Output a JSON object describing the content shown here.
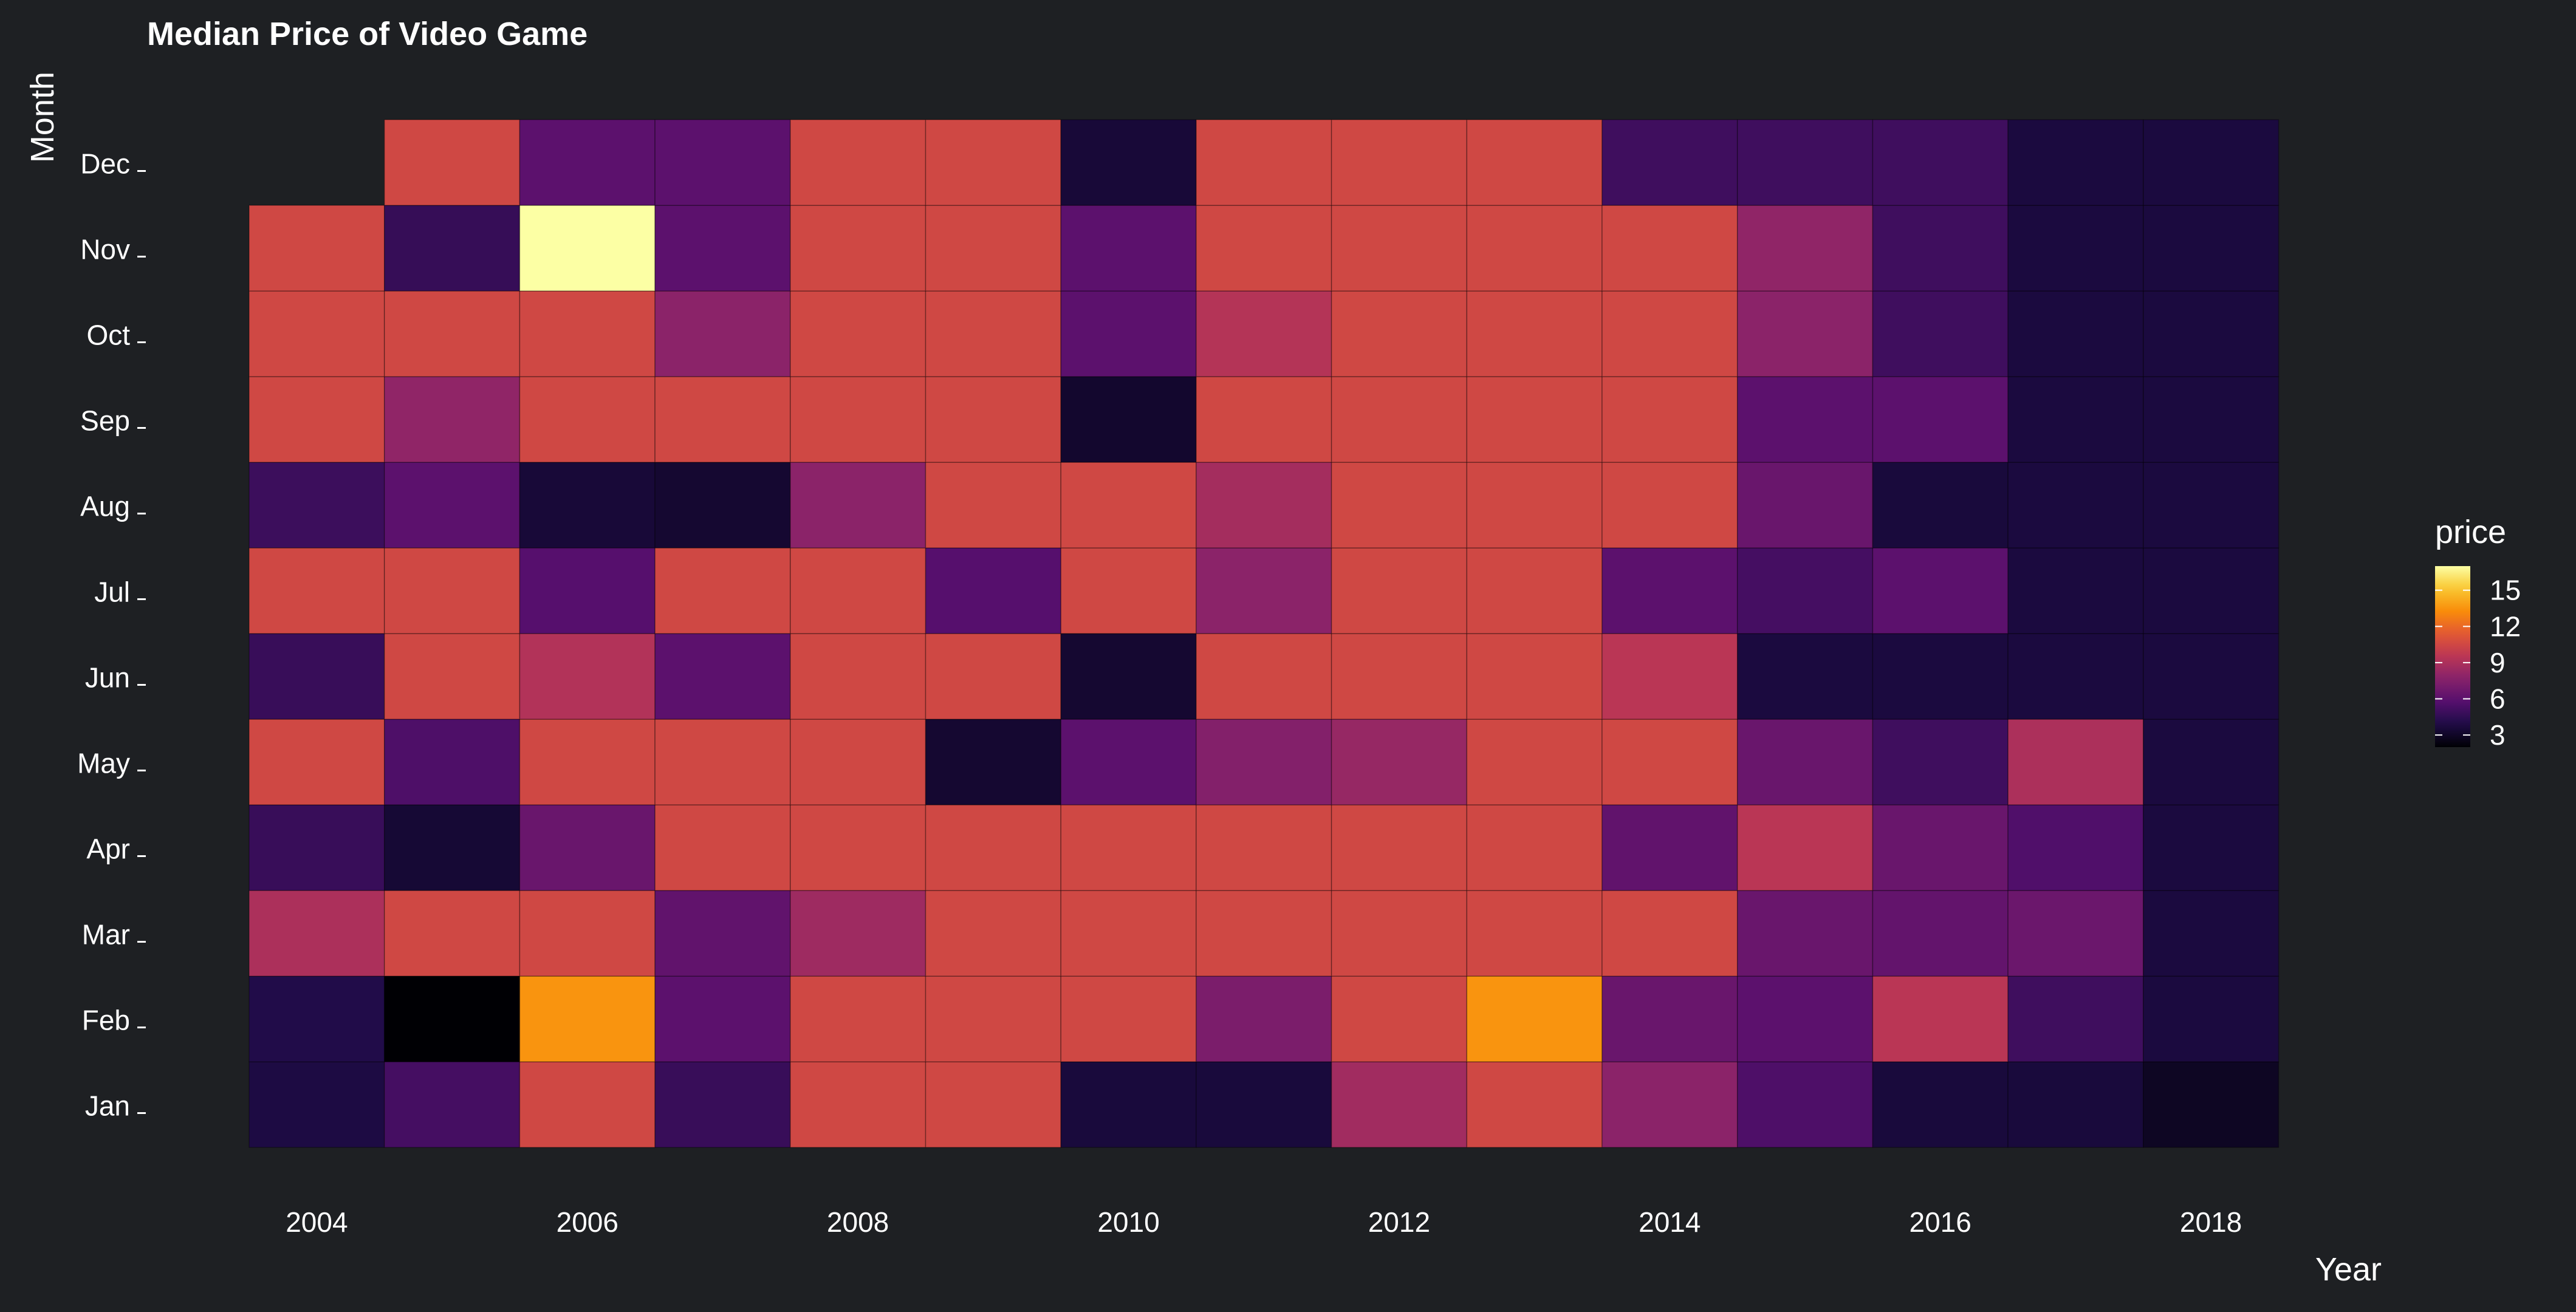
{
  "chart_data": {
    "type": "heatmap",
    "title": "Median Price of Video Game",
    "xlabel": "Year",
    "ylabel": "Month",
    "x_ticks": [
      "2004",
      "2006",
      "2008",
      "2010",
      "2012",
      "2014",
      "2016",
      "2018"
    ],
    "years": [
      2004,
      2005,
      2006,
      2007,
      2008,
      2009,
      2010,
      2011,
      2012,
      2013,
      2014,
      2015,
      2016,
      2017,
      2018
    ],
    "months": [
      "Jan",
      "Feb",
      "Mar",
      "Apr",
      "May",
      "Jun",
      "Jul",
      "Aug",
      "Sep",
      "Oct",
      "Nov",
      "Dec"
    ],
    "colorscale": "inferno",
    "color_range": [
      2,
      17
    ],
    "legend": {
      "title": "price",
      "ticks": [
        3,
        6,
        9,
        12,
        15
      ],
      "tick_labels": [
        "3",
        "6",
        "9",
        "12",
        "15"
      ],
      "position": "right"
    },
    "values": [
      [
        3.8,
        5.2,
        10.5,
        4.8,
        10.5,
        10.5,
        3.6,
        3.6,
        8.6,
        10.5,
        7.8,
        5.5,
        3.6,
        3.6,
        2.9
      ],
      [
        4.0,
        2.0,
        13.5,
        6.0,
        10.5,
        10.5,
        10.5,
        7.2,
        10.5,
        13.5,
        6.5,
        6.0,
        9.5,
        5.0,
        3.7
      ],
      [
        9.0,
        10.5,
        10.5,
        6.2,
        8.5,
        10.5,
        10.5,
        10.5,
        10.5,
        10.5,
        10.5,
        6.5,
        6.3,
        6.6,
        3.7
      ],
      [
        4.8,
        3.4,
        6.5,
        10.5,
        10.5,
        10.5,
        10.5,
        10.5,
        10.5,
        10.5,
        6.2,
        9.5,
        6.5,
        5.6,
        3.7
      ],
      [
        10.5,
        5.5,
        10.5,
        10.5,
        10.5,
        3.3,
        6.0,
        7.5,
        8.2,
        10.5,
        10.5,
        6.5,
        5.0,
        9.0,
        3.7
      ],
      [
        4.8,
        10.5,
        9.2,
        6.0,
        10.5,
        10.5,
        3.3,
        10.5,
        10.5,
        10.5,
        9.5,
        3.7,
        3.7,
        3.7,
        3.7
      ],
      [
        10.5,
        10.5,
        5.8,
        10.5,
        10.5,
        5.8,
        10.5,
        7.8,
        10.5,
        10.5,
        6.0,
        5.2,
        6.0,
        3.7,
        3.7
      ],
      [
        4.9,
        6.0,
        3.5,
        3.3,
        7.8,
        10.5,
        10.5,
        8.7,
        10.5,
        10.5,
        10.5,
        6.5,
        3.6,
        3.7,
        3.7
      ],
      [
        10.5,
        8.0,
        10.5,
        10.5,
        10.5,
        10.5,
        3.2,
        10.5,
        10.5,
        10.5,
        10.5,
        6.0,
        6.0,
        3.7,
        3.7
      ],
      [
        10.5,
        10.5,
        10.5,
        7.8,
        10.5,
        10.5,
        6.0,
        9.3,
        10.5,
        10.5,
        10.5,
        7.8,
        5.0,
        3.7,
        3.7
      ],
      [
        10.5,
        4.7,
        17.0,
        6.0,
        10.5,
        10.5,
        6.0,
        10.5,
        10.5,
        10.5,
        10.5,
        8.0,
        5.0,
        3.7,
        3.7
      ],
      [
        null,
        10.5,
        6.0,
        6.0,
        10.5,
        10.5,
        3.5,
        10.5,
        10.5,
        10.5,
        5.0,
        5.0,
        5.0,
        3.7,
        3.7
      ]
    ]
  }
}
